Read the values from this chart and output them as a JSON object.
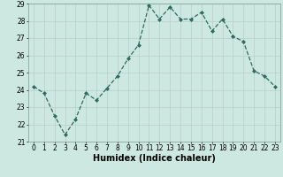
{
  "x": [
    0,
    1,
    2,
    3,
    4,
    5,
    6,
    7,
    8,
    9,
    10,
    11,
    12,
    13,
    14,
    15,
    16,
    17,
    18,
    19,
    20,
    21,
    22,
    23
  ],
  "y": [
    24.2,
    23.8,
    22.5,
    21.4,
    22.3,
    23.8,
    23.4,
    24.1,
    24.8,
    25.8,
    26.6,
    28.9,
    28.1,
    28.8,
    28.1,
    28.1,
    28.5,
    27.4,
    28.1,
    27.1,
    26.8,
    25.1,
    24.8,
    24.2
  ],
  "line_color": "#2e6b5e",
  "marker": "D",
  "markersize": 2.0,
  "linewidth": 0.9,
  "linestyle": "--",
  "bg_color": "#cde8e0",
  "grid_color_major": "#b8cfc8",
  "grid_color_minor": "#d8e8e4",
  "xlabel": "Humidex (Indice chaleur)",
  "ylim": [
    21,
    29
  ],
  "yticks": [
    21,
    22,
    23,
    24,
    25,
    26,
    27,
    28,
    29
  ],
  "xticks": [
    0,
    1,
    2,
    3,
    4,
    5,
    6,
    7,
    8,
    9,
    10,
    11,
    12,
    13,
    14,
    15,
    16,
    17,
    18,
    19,
    20,
    21,
    22,
    23
  ],
  "tick_fontsize": 5.5,
  "xlabel_fontsize": 7.0,
  "xlabel_fontweight": "bold"
}
